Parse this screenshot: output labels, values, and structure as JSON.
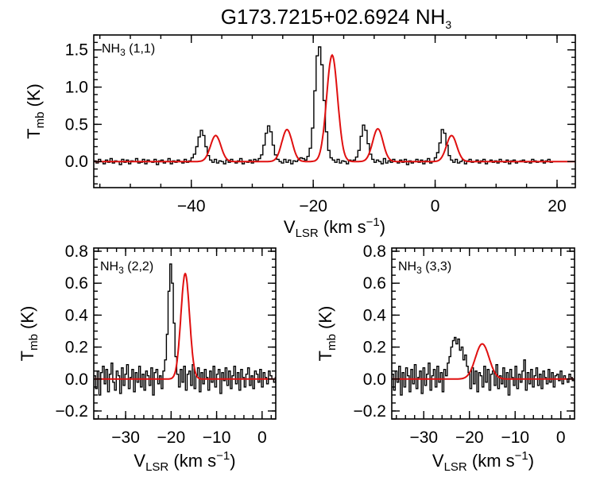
{
  "figure": {
    "title_main": "G173.7215+02.6924 NH",
    "title_sub": "3"
  },
  "colors": {
    "data": "#000000",
    "fit": "#e01010",
    "background": "#ffffff"
  },
  "chart_data": [
    {
      "id": "nh3_11",
      "type": "line",
      "line_label": {
        "main": "NH",
        "sub": "3",
        "rest": " (1,1)"
      },
      "xlabel": {
        "main": "V",
        "sub": "LSR",
        "rest": " (km s",
        "sup": "−1",
        "close": ")"
      },
      "ylabel": {
        "main": "T",
        "sub": "mb",
        "rest": " (K)"
      },
      "xlim": [
        -56,
        23
      ],
      "ylim": [
        -0.35,
        1.7
      ],
      "xticks": [
        -40,
        -20,
        0,
        20
      ],
      "xtick_labels": [
        "−40",
        "−20",
        "0",
        "20"
      ],
      "yticks": [
        0.0,
        0.5,
        1.0,
        1.5
      ],
      "ytick_labels": [
        "0.0",
        "0.5",
        "1.0",
        "1.5"
      ],
      "x_minor_step": 5,
      "y_minor_step": 0.1,
      "x_start": -56,
      "x_step": 0.38,
      "series": [
        {
          "kind": "data",
          "values": [
            0.01,
            -0.02,
            0.03,
            0.0,
            -0.03,
            0.02,
            -0.01,
            0.04,
            -0.02,
            0.01,
            0.0,
            -0.04,
            0.03,
            -0.01,
            0.02,
            -0.03,
            0.01,
            0.0,
            0.04,
            -0.02,
            -0.01,
            0.03,
            -0.03,
            0.02,
            0.0,
            -0.01,
            0.03,
            -0.04,
            0.01,
            0.02,
            -0.02,
            0.0,
            0.04,
            -0.03,
            0.01,
            -0.01,
            0.02,
            0.0,
            -0.02,
            0.03,
            -0.01,
            0.01,
            0.05,
            0.1,
            0.2,
            0.33,
            0.42,
            0.35,
            0.2,
            0.08,
            0.02,
            -0.01,
            0.03,
            -0.02,
            0.01,
            0.0,
            -0.03,
            0.02,
            -0.01,
            0.03,
            0.0,
            -0.02,
            0.01,
            0.04,
            -0.03,
            0.0,
            -0.01,
            0.02,
            -0.02,
            0.03,
            0.01,
            0.04,
            0.09,
            0.22,
            0.38,
            0.48,
            0.4,
            0.22,
            0.09,
            0.03,
            0.0,
            -0.02,
            0.03,
            -0.01,
            0.02,
            -0.03,
            0.01,
            0.0,
            0.02,
            0.05,
            0.04,
            0.02,
            0.07,
            0.18,
            0.45,
            0.95,
            1.42,
            1.54,
            1.3,
            0.82,
            0.4,
            0.15,
            0.05,
            0.02,
            -0.01,
            0.03,
            -0.02,
            0.01,
            0.0,
            -0.03,
            0.02,
            0.01,
            0.02,
            0.06,
            0.15,
            0.34,
            0.49,
            0.42,
            0.24,
            0.1,
            0.03,
            -0.01,
            0.02,
            0.0,
            -0.03,
            0.04,
            -0.02,
            0.01,
            -0.01,
            0.03,
            0.0,
            -0.02,
            0.02,
            -0.01,
            0.03,
            -0.04,
            0.01,
            -0.02,
            0.0,
            0.03,
            -0.01,
            0.02,
            -0.03,
            0.01,
            0.04,
            -0.02,
            0.0,
            0.05,
            0.12,
            0.25,
            0.43,
            0.38,
            0.22,
            0.08,
            0.02,
            -0.01,
            0.03,
            -0.02,
            0.0,
            0.02,
            -0.03,
            0.01,
            0.03,
            -0.01,
            0.0,
            0.02,
            -0.02,
            0.01,
            0.03,
            -0.03,
            0.0,
            0.02,
            -0.01,
            0.01,
            -0.02,
            0.03,
            0.0,
            -0.01,
            0.02,
            -0.03,
            0.01,
            0.02,
            -0.02,
            0.0,
            0.01,
            0.02,
            -0.01,
            0.0,
            -0.02,
            0.03,
            0.01,
            -0.01,
            0.0,
            0.02,
            -0.02,
            0.01,
            0.03,
            -0.01,
            0.0
          ]
        },
        {
          "kind": "fit",
          "components": [
            {
              "amp": 0.35,
              "center": -36.0,
              "sigma": 0.85
            },
            {
              "amp": 0.43,
              "center": -24.3,
              "sigma": 0.85
            },
            {
              "amp": 1.43,
              "center": -16.9,
              "sigma": 0.9
            },
            {
              "amp": 0.44,
              "center": -9.4,
              "sigma": 0.85
            },
            {
              "amp": 0.35,
              "center": 2.7,
              "sigma": 0.85
            }
          ]
        }
      ]
    },
    {
      "id": "nh3_22",
      "type": "line",
      "line_label": {
        "main": "NH",
        "sub": "3",
        "rest": " (2,2)"
      },
      "xlabel": {
        "main": "V",
        "sub": "LSR",
        "rest": " (km s",
        "sup": "−1",
        "close": ")"
      },
      "ylabel": {
        "main": "T",
        "sub": "mb",
        "rest": " (K)"
      },
      "xlim": [
        -37,
        3
      ],
      "ylim": [
        -0.25,
        0.82
      ],
      "xticks": [
        -30,
        -20,
        -10,
        0
      ],
      "xtick_labels": [
        "−30",
        "−20",
        "−10",
        "0"
      ],
      "yticks": [
        -0.2,
        0.0,
        0.2,
        0.4,
        0.6,
        0.8
      ],
      "ytick_labels": [
        "−0.2",
        "0.0",
        "0.2",
        "0.4",
        "0.6",
        "0.8"
      ],
      "x_minor_step": 2,
      "y_minor_step": 0.05,
      "x_start": -37,
      "x_step": 0.38,
      "series": [
        {
          "kind": "data",
          "values": [
            0.02,
            -0.06,
            0.05,
            -0.1,
            0.04,
            0.08,
            -0.03,
            0.06,
            -0.08,
            0.03,
            0.1,
            -0.02,
            -0.07,
            0.05,
            0.02,
            -0.09,
            0.07,
            -0.04,
            0.03,
            0.09,
            -0.06,
            0.01,
            0.06,
            -0.08,
            0.04,
            -0.02,
            0.08,
            -0.05,
            0.03,
            -0.07,
            0.05,
            0.02,
            -0.04,
            0.07,
            -0.1,
            0.04,
            0.06,
            -0.03,
            0.02,
            -0.06,
            0.05,
            0.12,
            0.28,
            0.55,
            0.72,
            0.6,
            0.35,
            0.14,
            0.03,
            -0.05,
            0.06,
            -0.02,
            0.08,
            -0.07,
            0.03,
            0.05,
            -0.04,
            0.09,
            -0.06,
            0.02,
            0.07,
            -0.08,
            0.04,
            -0.03,
            0.06,
            0.01,
            -0.07,
            0.05,
            -0.02,
            0.08,
            -0.05,
            0.03,
            0.06,
            -0.09,
            0.04,
            -0.01,
            0.07,
            -0.04,
            0.05,
            -0.06,
            0.02,
            0.08,
            -0.03,
            0.04,
            -0.07,
            0.06,
            0.01,
            -0.05,
            0.03,
            0.07,
            -0.04,
            0.02,
            -0.06,
            0.05,
            0.03,
            -0.02,
            0.06,
            -0.05,
            0.04,
            0.01,
            -0.03,
            0.05,
            0.02,
            0.0,
            -0.02,
            0.01
          ]
        },
        {
          "kind": "fit",
          "components": [
            {
              "amp": 0.66,
              "center": -16.9,
              "sigma": 0.95
            }
          ]
        }
      ]
    },
    {
      "id": "nh3_33",
      "type": "line",
      "line_label": {
        "main": "NH",
        "sub": "3",
        "rest": " (3,3)"
      },
      "xlabel": {
        "main": "V",
        "sub": "LSR",
        "rest": " (km s",
        "sup": "−1",
        "close": ")"
      },
      "ylabel": {
        "main": "T",
        "sub": "mb",
        "rest": " (K)"
      },
      "xlim": [
        -37,
        3
      ],
      "ylim": [
        -0.25,
        0.82
      ],
      "xticks": [
        -30,
        -20,
        -10,
        0
      ],
      "xtick_labels": [
        "−30",
        "−20",
        "−10",
        "0"
      ],
      "yticks": [
        -0.2,
        0.0,
        0.2,
        0.4,
        0.6,
        0.8
      ],
      "ytick_labels": [
        "−0.2",
        "0.0",
        "0.2",
        "0.4",
        "0.6",
        "0.8"
      ],
      "x_minor_step": 2,
      "y_minor_step": 0.05,
      "x_start": -37,
      "x_step": 0.38,
      "series": [
        {
          "kind": "data",
          "values": [
            0.03,
            -0.07,
            0.05,
            -0.02,
            0.08,
            -0.1,
            0.04,
            -0.05,
            0.07,
            0.02,
            -0.08,
            0.06,
            -0.03,
            0.09,
            -0.06,
            0.01,
            0.05,
            -0.09,
            0.07,
            -0.04,
            0.03,
            0.1,
            -0.07,
            0.02,
            0.06,
            -0.05,
            0.08,
            -0.02,
            0.04,
            -0.08,
            0.06,
            0.02,
            0.1,
            0.14,
            0.2,
            0.24,
            0.26,
            0.22,
            0.25,
            0.18,
            0.2,
            0.12,
            0.15,
            0.08,
            0.04,
            -0.06,
            0.07,
            -0.03,
            0.05,
            -0.08,
            0.04,
            0.02,
            -0.05,
            0.08,
            -0.02,
            0.06,
            -0.07,
            0.03,
            0.05,
            -0.04,
            0.09,
            -0.06,
            0.02,
            -0.03,
            0.07,
            -0.05,
            0.04,
            -0.1,
            0.06,
            0.01,
            -0.04,
            0.08,
            -0.06,
            0.03,
            -0.02,
            0.05,
            0.12,
            -0.07,
            0.04,
            -0.03,
            0.06,
            -0.05,
            0.02,
            0.07,
            -0.04,
            0.03,
            -0.06,
            0.05,
            0.01,
            -0.03,
            0.06,
            -0.02,
            0.04,
            -0.05,
            0.02,
            0.03,
            -0.01,
            0.05,
            -0.03,
            0.02,
            0.0,
            -0.02,
            0.03,
            0.01,
            -0.01,
            0.0
          ]
        },
        {
          "kind": "fit",
          "components": [
            {
              "amp": 0.22,
              "center": -17.2,
              "sigma": 1.5
            }
          ]
        }
      ]
    }
  ]
}
